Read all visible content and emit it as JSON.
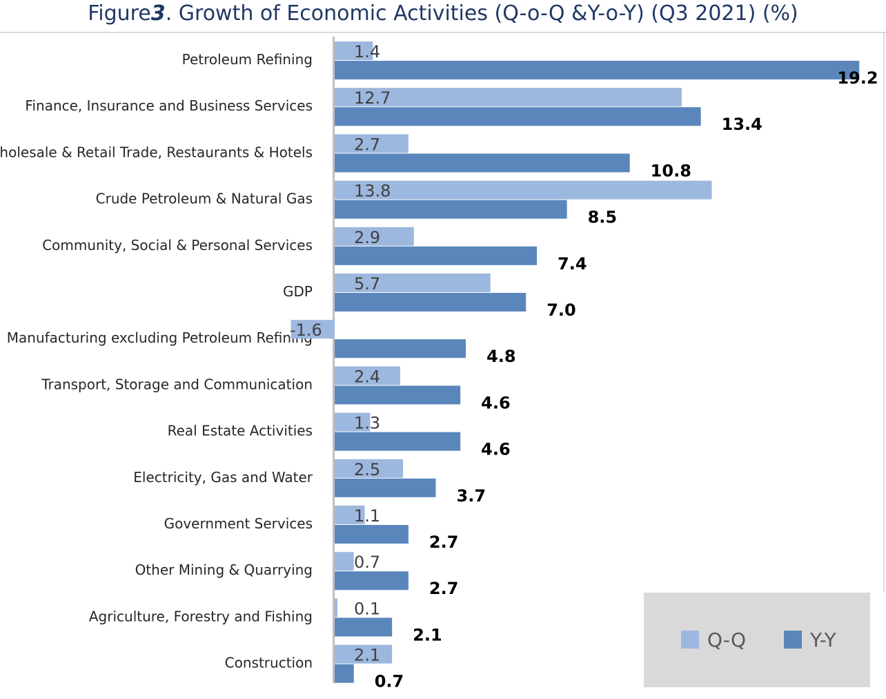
{
  "title": {
    "prefix": "Figure",
    "number": "3",
    "text": ". Growth of Economic Activities (Q-o-Q &Y-o-Y) (Q3 2021) (%)"
  },
  "colors": {
    "qq": "#9db8de",
    "yy": "#5a86bb",
    "axis": "#bfbfbf",
    "legend_bg": "#d9d9d9",
    "title": "#1f3864"
  },
  "legend": {
    "position": "bottom-right",
    "items": [
      {
        "label": "Q-Q",
        "color": "#9db8de"
      },
      {
        "label": "Y-Y",
        "color": "#5a86bb"
      }
    ]
  },
  "chart_data": {
    "type": "bar",
    "orientation": "horizontal",
    "title": "Figure3 . Growth of Economic Activities (Q-o-Q &Y-o-Y) (Q3 2021) (%)",
    "xlabel": "",
    "ylabel": "",
    "xlim": [
      -1.6,
      19.2
    ],
    "grid": false,
    "categories": [
      "Petroleum Refining",
      "Finance, Insurance and Business Services",
      "Wholesale & Retail Trade, Restaurants & Hotels",
      "Crude Petroleum & Natural Gas",
      "Community, Social & Personal Services",
      "GDP",
      "Manufacturing excluding Petroleum Refining",
      "Transport, Storage and Communication",
      "Real Estate Activities",
      "Electricity, Gas and Water",
      "Government Services",
      "Other Mining & Quarrying",
      "Agriculture, Forestry and Fishing",
      "Construction"
    ],
    "series": [
      {
        "name": "Q-Q",
        "values": [
          1.4,
          12.7,
          2.7,
          13.8,
          2.9,
          5.7,
          -1.6,
          2.4,
          1.3,
          2.5,
          1.1,
          0.7,
          0.1,
          2.1
        ]
      },
      {
        "name": "Y-Y",
        "values": [
          19.2,
          13.4,
          10.8,
          8.5,
          7.4,
          7.0,
          4.8,
          4.6,
          4.6,
          3.7,
          2.7,
          2.7,
          2.1,
          0.7
        ]
      }
    ]
  }
}
